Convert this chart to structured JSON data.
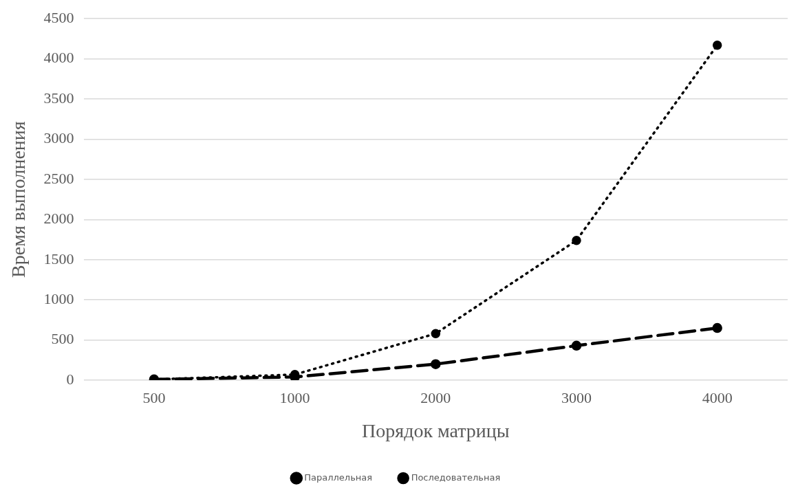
{
  "chart_data": {
    "type": "line",
    "xlabel": "Порядок матрицы",
    "ylabel": "Время выполнения",
    "categories": [
      "500",
      "1000",
      "2000",
      "3000",
      "4000"
    ],
    "series": [
      {
        "name": "Параллельная",
        "color": "#000000",
        "line_style": "dashed",
        "values": [
          10,
          40,
          200,
          430,
          650
        ]
      },
      {
        "name": "Последовательная",
        "color": "#000000",
        "line_style": "dotted",
        "values": [
          10,
          70,
          580,
          1740,
          4170
        ]
      }
    ],
    "ylim": [
      0,
      4500
    ],
    "yticks": [
      0,
      500,
      1000,
      1500,
      2000,
      2500,
      3000,
      3500,
      4000,
      4500
    ],
    "grid": "y",
    "legend": "bottom",
    "marker": "circle"
  }
}
